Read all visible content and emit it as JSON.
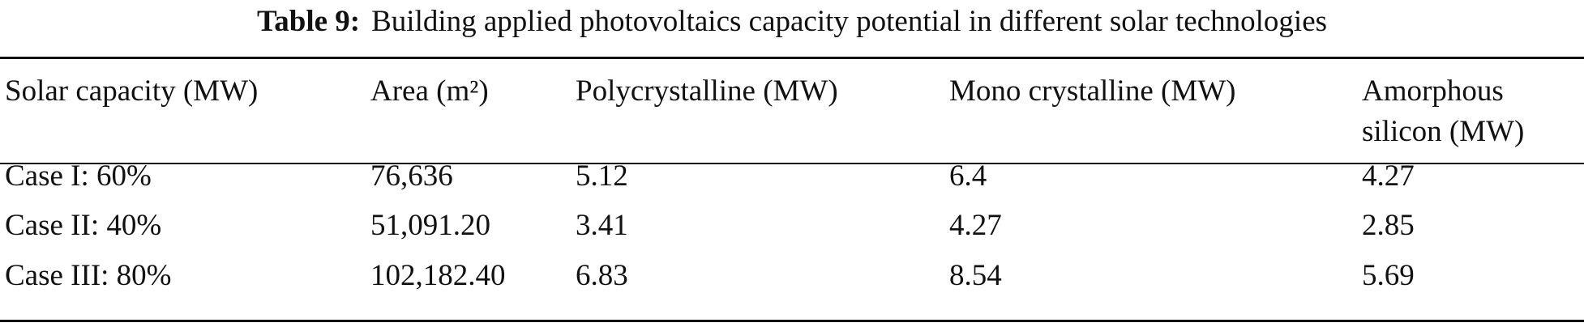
{
  "caption": {
    "label": "Table 9:",
    "text": "Building applied photovoltaics capacity potential in different solar technologies"
  },
  "table": {
    "header": [
      "Solar capacity (MW)",
      "Area (m²)",
      "Polycrystalline (MW)",
      "Mono crystalline (MW)",
      "Amorphous silicon (MW)"
    ],
    "rows": [
      [
        "Case I: 60%",
        "76,636",
        "5.12",
        "6.4",
        "4.27"
      ],
      [
        "Case II: 40%",
        "51,091.20",
        "3.41",
        "4.27",
        "2.85"
      ],
      [
        "Case III: 80%",
        "102,182.40",
        "6.83",
        "8.54",
        "5.69"
      ]
    ]
  }
}
